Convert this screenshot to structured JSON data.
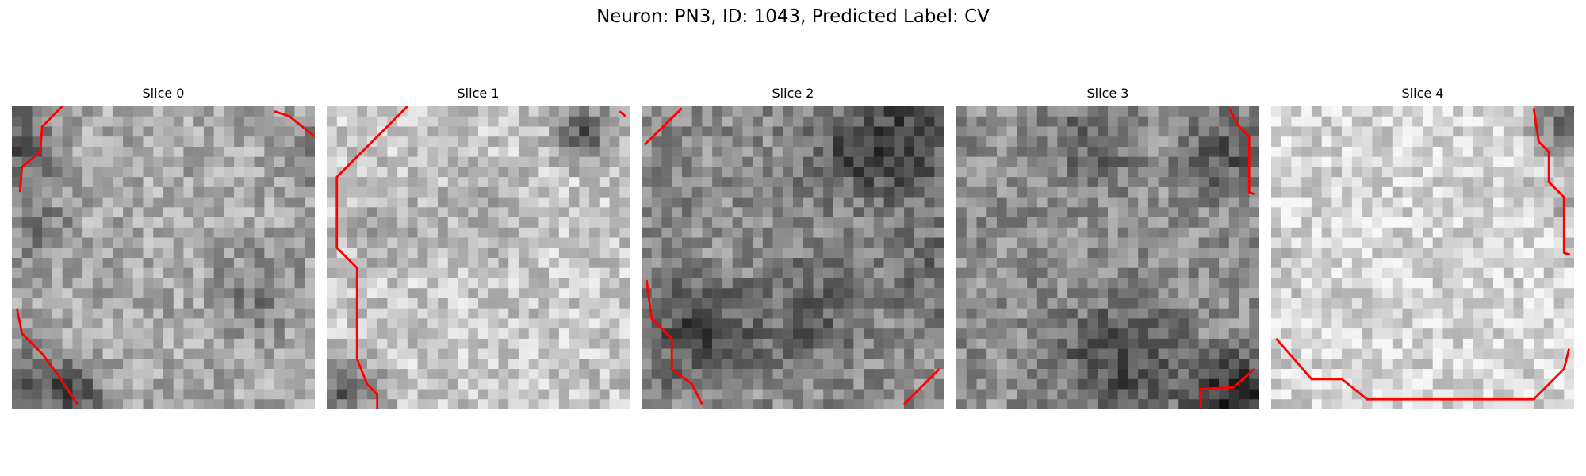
{
  "figure": {
    "title": "Neuron: PN3, ID: 1043, Predicted Label: CV",
    "contour_color": "#ff0000",
    "colormap": "grayscale"
  },
  "panels": [
    {
      "title": "Slice 0",
      "mean_brightness": 0.66,
      "contours": 3
    },
    {
      "title": "Slice 1",
      "mean_brightness": 0.78,
      "contours": 2
    },
    {
      "title": "Slice 2",
      "mean_brightness": 0.55,
      "contours": 3
    },
    {
      "title": "Slice 3",
      "mean_brightness": 0.56,
      "contours": 2
    },
    {
      "title": "Slice 4",
      "mean_brightness": 0.84,
      "contours": 2
    }
  ]
}
